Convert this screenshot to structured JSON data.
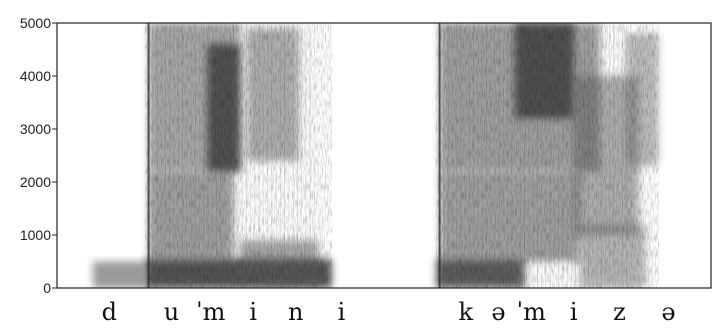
{
  "chart_data": {
    "type": "heatmap",
    "title": "",
    "xlabel": "",
    "ylabel": "",
    "ylim": [
      0,
      5000
    ],
    "y_ticks": [
      {
        "value": 5000,
        "label": "5000"
      },
      {
        "value": 4000,
        "label": "4000"
      },
      {
        "value": 3000,
        "label": "3000"
      },
      {
        "value": 2000,
        "label": "2000"
      },
      {
        "value": 1000,
        "label": "1000"
      },
      {
        "value": 0,
        "label": "0"
      }
    ],
    "x_range": [
      0,
      1
    ],
    "segment_labels": [
      {
        "text": "d",
        "t": 0.08
      },
      {
        "text": "u",
        "t": 0.175
      },
      {
        "text": "ˈm",
        "t": 0.235
      },
      {
        "text": "i",
        "t": 0.3
      },
      {
        "text": "n",
        "t": 0.365
      },
      {
        "text": "i",
        "t": 0.435
      },
      {
        "text": "k",
        "t": 0.625
      },
      {
        "text": "ə",
        "t": 0.675
      },
      {
        "text": "ˈm",
        "t": 0.725
      },
      {
        "text": "i",
        "t": 0.79
      },
      {
        "text": "z",
        "t": 0.86
      },
      {
        "text": "ə",
        "t": 0.935
      }
    ],
    "energy_regions": [
      {
        "name": "voice-bar-d",
        "t0": 0.055,
        "t1": 0.135,
        "f0": 0,
        "f1": 500,
        "intensity": 0.55
      },
      {
        "name": "voice-bar-1",
        "t0": 0.135,
        "t1": 0.42,
        "f0": 0,
        "f1": 550,
        "intensity": 0.95
      },
      {
        "name": "word1-lower",
        "t0": 0.14,
        "t1": 0.27,
        "f0": 500,
        "f1": 2200,
        "intensity": 0.5
      },
      {
        "name": "word1-upper",
        "t0": 0.14,
        "t1": 0.28,
        "f0": 2200,
        "f1": 5000,
        "intensity": 0.45
      },
      {
        "name": "formant-dark-1",
        "t0": 0.23,
        "t1": 0.28,
        "f0": 2200,
        "f1": 4600,
        "intensity": 0.85
      },
      {
        "name": "word1-n-i",
        "t0": 0.29,
        "t1": 0.37,
        "f0": 2400,
        "f1": 4900,
        "intensity": 0.4
      },
      {
        "name": "word1-low-n",
        "t0": 0.28,
        "t1": 0.4,
        "f0": 100,
        "f1": 900,
        "intensity": 0.45
      },
      {
        "name": "voice-bar-2",
        "t0": 0.58,
        "t1": 0.715,
        "f0": 0,
        "f1": 550,
        "intensity": 0.9
      },
      {
        "name": "word2-lower",
        "t0": 0.585,
        "t1": 0.8,
        "f0": 500,
        "f1": 2200,
        "intensity": 0.5
      },
      {
        "name": "word2-upper",
        "t0": 0.585,
        "t1": 0.83,
        "f0": 2200,
        "f1": 5000,
        "intensity": 0.5
      },
      {
        "name": "formant-dark-2",
        "t0": 0.7,
        "t1": 0.79,
        "f0": 3200,
        "f1": 5000,
        "intensity": 0.85
      },
      {
        "name": "z-fric",
        "t0": 0.79,
        "t1": 0.89,
        "f0": 1000,
        "f1": 4000,
        "intensity": 0.4
      },
      {
        "name": "schwa-low",
        "t0": 0.8,
        "t1": 0.9,
        "f0": 0,
        "f1": 1200,
        "intensity": 0.35
      },
      {
        "name": "schwa-fric",
        "t0": 0.87,
        "t1": 0.92,
        "f0": 2300,
        "f1": 4800,
        "intensity": 0.3
      }
    ],
    "grid": false,
    "legend": "none"
  }
}
